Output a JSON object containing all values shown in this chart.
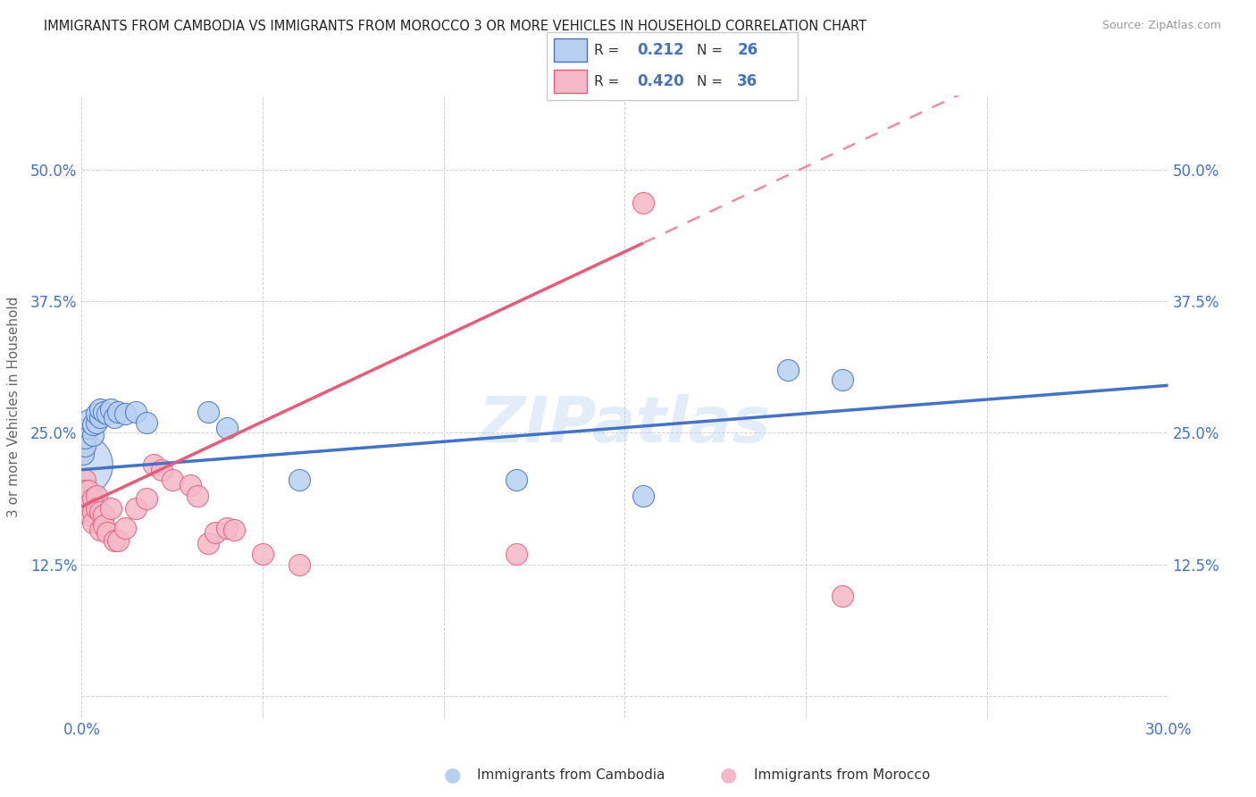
{
  "title": "IMMIGRANTS FROM CAMBODIA VS IMMIGRANTS FROM MOROCCO 3 OR MORE VEHICLES IN HOUSEHOLD CORRELATION CHART",
  "source": "Source: ZipAtlas.com",
  "ylabel": "3 or more Vehicles in Household",
  "xmin": 0.0,
  "xmax": 0.3,
  "ymin": -0.02,
  "ymax": 0.57,
  "x_ticks": [
    0.0,
    0.05,
    0.1,
    0.15,
    0.2,
    0.25,
    0.3
  ],
  "x_tick_labels": [
    "0.0%",
    "",
    "",
    "",
    "",
    "",
    "30.0%"
  ],
  "y_ticks": [
    0.0,
    0.125,
    0.25,
    0.375,
    0.5
  ],
  "y_tick_labels": [
    "",
    "12.5%",
    "25.0%",
    "37.5%",
    "50.0%"
  ],
  "blue_color": "#4472c4",
  "pink_color": "#e85c7a",
  "blue_scatter_color": "#b8d0f0",
  "pink_scatter_color": "#f5b8c8",
  "watermark": "ZIPatlas",
  "legend_R_blue": "0.212",
  "legend_N_blue": "26",
  "legend_R_pink": "0.420",
  "legend_N_pink": "36",
  "cambodia_points": [
    [
      0.0005,
      0.23
    ],
    [
      0.001,
      0.238
    ],
    [
      0.001,
      0.245
    ],
    [
      0.002,
      0.255
    ],
    [
      0.002,
      0.262
    ],
    [
      0.003,
      0.248
    ],
    [
      0.003,
      0.258
    ],
    [
      0.004,
      0.26
    ],
    [
      0.004,
      0.268
    ],
    [
      0.005,
      0.265
    ],
    [
      0.005,
      0.272
    ],
    [
      0.006,
      0.27
    ],
    [
      0.007,
      0.268
    ],
    [
      0.008,
      0.272
    ],
    [
      0.009,
      0.265
    ],
    [
      0.01,
      0.27
    ],
    [
      0.012,
      0.268
    ],
    [
      0.015,
      0.27
    ],
    [
      0.018,
      0.26
    ],
    [
      0.035,
      0.27
    ],
    [
      0.04,
      0.255
    ],
    [
      0.06,
      0.205
    ],
    [
      0.12,
      0.205
    ],
    [
      0.155,
      0.19
    ],
    [
      0.195,
      0.31
    ],
    [
      0.21,
      0.3
    ]
  ],
  "morocco_points": [
    [
      0.001,
      0.205
    ],
    [
      0.001,
      0.195
    ],
    [
      0.001,
      0.185
    ],
    [
      0.002,
      0.195
    ],
    [
      0.002,
      0.182
    ],
    [
      0.002,
      0.172
    ],
    [
      0.003,
      0.188
    ],
    [
      0.003,
      0.175
    ],
    [
      0.003,
      0.165
    ],
    [
      0.004,
      0.19
    ],
    [
      0.004,
      0.178
    ],
    [
      0.005,
      0.175
    ],
    [
      0.005,
      0.158
    ],
    [
      0.006,
      0.172
    ],
    [
      0.006,
      0.162
    ],
    [
      0.007,
      0.155
    ],
    [
      0.008,
      0.178
    ],
    [
      0.009,
      0.148
    ],
    [
      0.01,
      0.148
    ],
    [
      0.012,
      0.16
    ],
    [
      0.015,
      0.178
    ],
    [
      0.018,
      0.188
    ],
    [
      0.02,
      0.22
    ],
    [
      0.022,
      0.215
    ],
    [
      0.025,
      0.205
    ],
    [
      0.03,
      0.2
    ],
    [
      0.032,
      0.19
    ],
    [
      0.035,
      0.145
    ],
    [
      0.037,
      0.155
    ],
    [
      0.04,
      0.16
    ],
    [
      0.042,
      0.158
    ],
    [
      0.05,
      0.135
    ],
    [
      0.06,
      0.125
    ],
    [
      0.12,
      0.135
    ],
    [
      0.155,
      0.468
    ],
    [
      0.21,
      0.095
    ]
  ]
}
